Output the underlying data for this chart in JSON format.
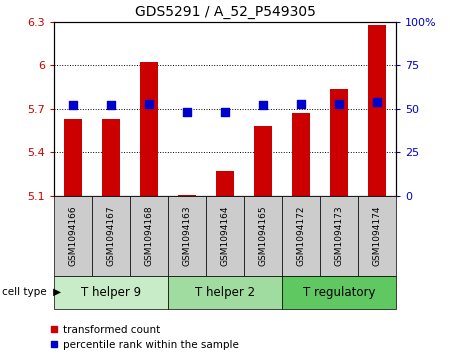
{
  "title": "GDS5291 / A_52_P549305",
  "samples": [
    "GSM1094166",
    "GSM1094167",
    "GSM1094168",
    "GSM1094163",
    "GSM1094164",
    "GSM1094165",
    "GSM1094172",
    "GSM1094173",
    "GSM1094174"
  ],
  "transformed_count": [
    5.63,
    5.63,
    6.02,
    5.11,
    5.27,
    5.58,
    5.67,
    5.84,
    6.28
  ],
  "percentile_rank": [
    52,
    52,
    53,
    48,
    48,
    52,
    53,
    53,
    54
  ],
  "cell_types": [
    {
      "label": "T helper 9",
      "start": 0,
      "end": 3,
      "color": "#c8ecc8"
    },
    {
      "label": "T helper 2",
      "start": 3,
      "end": 6,
      "color": "#a0dca0"
    },
    {
      "label": "T regulatory",
      "start": 6,
      "end": 9,
      "color": "#60c860"
    }
  ],
  "ylim_left": [
    5.1,
    6.3
  ],
  "ylim_right": [
    0,
    100
  ],
  "yticks_left": [
    5.1,
    5.4,
    5.7,
    6.0,
    6.3
  ],
  "yticks_right": [
    0,
    25,
    50,
    75,
    100
  ],
  "ytick_labels_left": [
    "5.1",
    "5.4",
    "5.7",
    "6",
    "6.3"
  ],
  "ytick_labels_right": [
    "0",
    "25",
    "50",
    "75",
    "100%"
  ],
  "bar_color": "#cc0000",
  "dot_color": "#0000cc",
  "bar_width": 0.45,
  "dot_size": 40,
  "background_color": "#ffffff",
  "label_transformed": "transformed count",
  "label_percentile": "percentile rank within the sample",
  "cell_type_label": "cell type",
  "arrow_char": "▶",
  "sample_box_color": "#cccccc",
  "grid_yticks": [
    5.4,
    5.7,
    6.0
  ]
}
